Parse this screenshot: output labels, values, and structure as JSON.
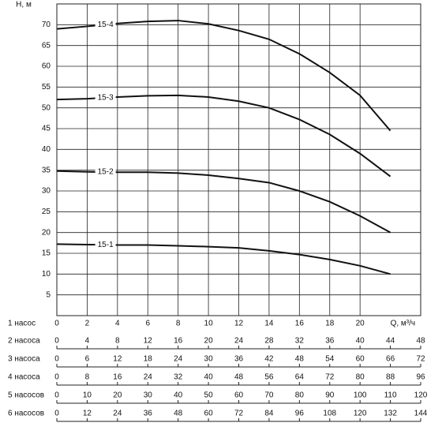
{
  "chart_data": {
    "type": "line",
    "y_label": "H, м",
    "x_label": "Q, м³/ч",
    "xlim": [
      0,
      24
    ],
    "ylim": [
      0,
      75
    ],
    "xticks": [
      0,
      2,
      4,
      6,
      8,
      10,
      12,
      14,
      16,
      18,
      20
    ],
    "yticks": [
      5,
      10,
      15,
      20,
      25,
      30,
      35,
      40,
      45,
      50,
      55,
      60,
      65,
      70
    ],
    "grid": true,
    "row_label": "1 насос",
    "x": [
      0,
      2,
      4,
      6,
      8,
      10,
      12,
      14,
      16,
      18,
      20,
      22
    ],
    "series": [
      {
        "name": "15-4",
        "color": "#111111",
        "values": [
          69,
          69.6,
          70.3,
          70.8,
          71,
          70.2,
          68.6,
          66.5,
          63,
          58.5,
          53,
          44.5
        ]
      },
      {
        "name": "15-3",
        "color": "#111111",
        "values": [
          52,
          52.2,
          52.6,
          52.9,
          53,
          52.6,
          51.6,
          50,
          47.2,
          43.6,
          39,
          33.5
        ]
      },
      {
        "name": "15-2",
        "color": "#111111",
        "values": [
          34.8,
          34.6,
          34.5,
          34.5,
          34.3,
          33.8,
          33,
          32,
          30,
          27.4,
          24,
          20
        ]
      },
      {
        "name": "15-1",
        "color": "#111111",
        "values": [
          17.2,
          17.1,
          17,
          17,
          16.8,
          16.6,
          16.3,
          15.6,
          14.7,
          13.5,
          12,
          10
        ]
      }
    ],
    "pump_scales": [
      {
        "label": "2 насоса",
        "ticks": [
          0,
          4,
          8,
          12,
          16,
          20,
          24,
          28,
          32,
          36,
          40,
          44,
          48
        ]
      },
      {
        "label": "3 насоса",
        "ticks": [
          0,
          6,
          12,
          18,
          24,
          30,
          36,
          42,
          48,
          54,
          60,
          66,
          72
        ]
      },
      {
        "label": "4 насоса",
        "ticks": [
          0,
          8,
          16,
          24,
          32,
          40,
          48,
          56,
          64,
          72,
          80,
          88,
          96
        ]
      },
      {
        "label": "5 насосов",
        "ticks": [
          0,
          10,
          20,
          30,
          40,
          50,
          60,
          70,
          80,
          90,
          100,
          110,
          120
        ]
      },
      {
        "label": "6 насосов",
        "ticks": [
          0,
          12,
          24,
          36,
          48,
          60,
          72,
          84,
          96,
          108,
          120,
          132,
          144
        ]
      }
    ]
  }
}
